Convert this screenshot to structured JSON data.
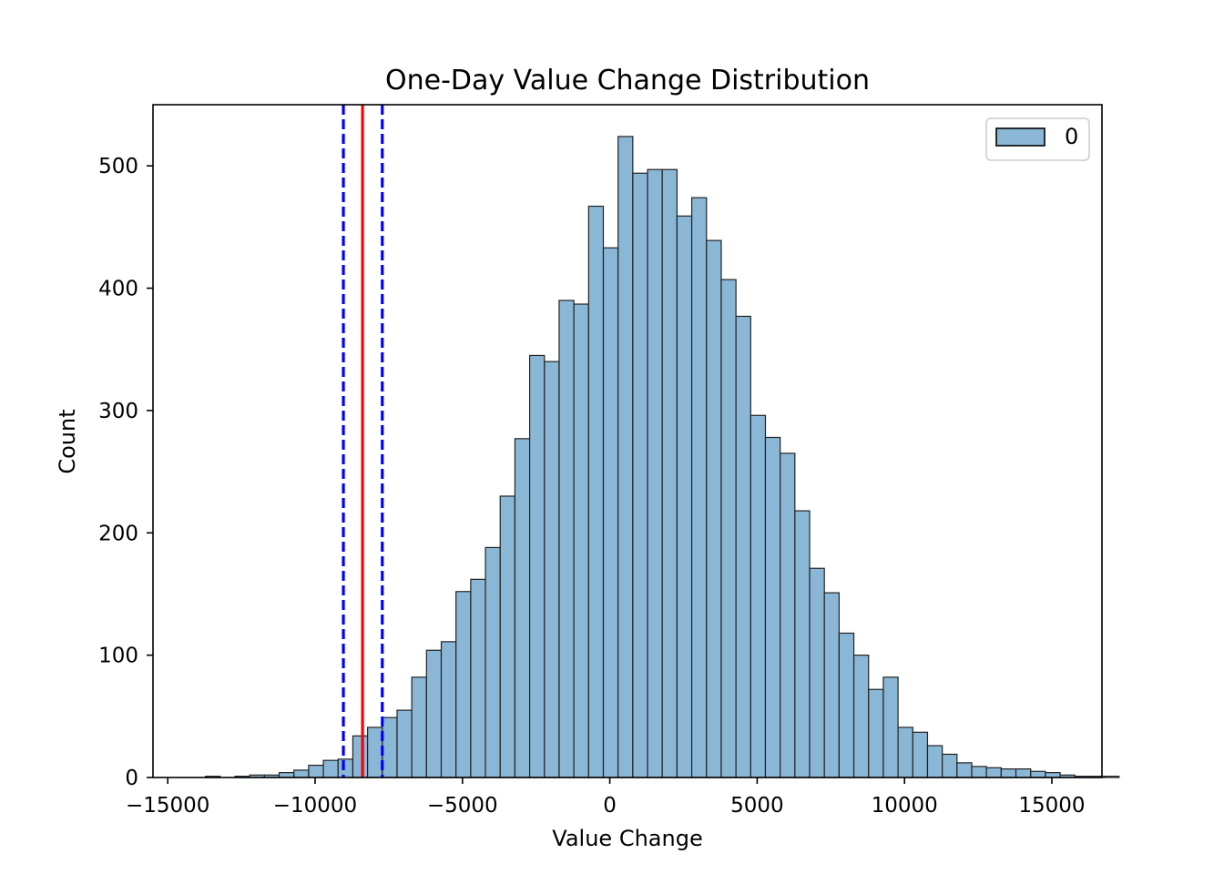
{
  "chart_data": {
    "type": "bar",
    "subtype": "histogram",
    "title": "One-Day Value Change Distribution",
    "xlabel": "Value Change",
    "ylabel": "Count",
    "xlim": [
      -15500,
      16700
    ],
    "ylim": [
      0,
      550
    ],
    "x_ticks": [
      -15000,
      -10000,
      -5000,
      0,
      5000,
      10000,
      15000
    ],
    "x_tick_labels": [
      "−15000",
      "−10000",
      "−5000",
      "0",
      "5000",
      "10000",
      "15000"
    ],
    "y_ticks": [
      0,
      100,
      200,
      300,
      400,
      500
    ],
    "y_tick_labels": [
      "0",
      "100",
      "200",
      "300",
      "400",
      "500"
    ],
    "bin_start": -14219,
    "bin_width": 500,
    "counts": [
      0,
      1,
      0,
      1,
      2,
      2,
      4,
      6,
      10,
      14,
      15,
      34,
      41,
      49,
      55,
      82,
      104,
      111,
      152,
      162,
      188,
      230,
      277,
      345,
      340,
      390,
      387,
      467,
      433,
      524,
      494,
      497,
      497,
      459,
      474,
      439,
      407,
      377,
      296,
      278,
      265,
      218,
      171,
      151,
      118,
      100,
      72,
      82,
      41,
      37,
      26,
      19,
      12,
      9,
      8,
      7,
      7,
      5,
      4,
      2,
      1,
      1,
      1
    ],
    "bar_color": "#8bb7d6",
    "bar_edge_color": "#222222",
    "vlines": [
      {
        "x": -8390,
        "color": "#ff0000",
        "style": "solid"
      },
      {
        "x": -9040,
        "color": "#0000ff",
        "style": "dashed"
      },
      {
        "x": -7720,
        "color": "#0000ff",
        "style": "dashed"
      }
    ],
    "legend": {
      "position": "top-right",
      "entries": [
        "0"
      ]
    },
    "grid": false
  }
}
